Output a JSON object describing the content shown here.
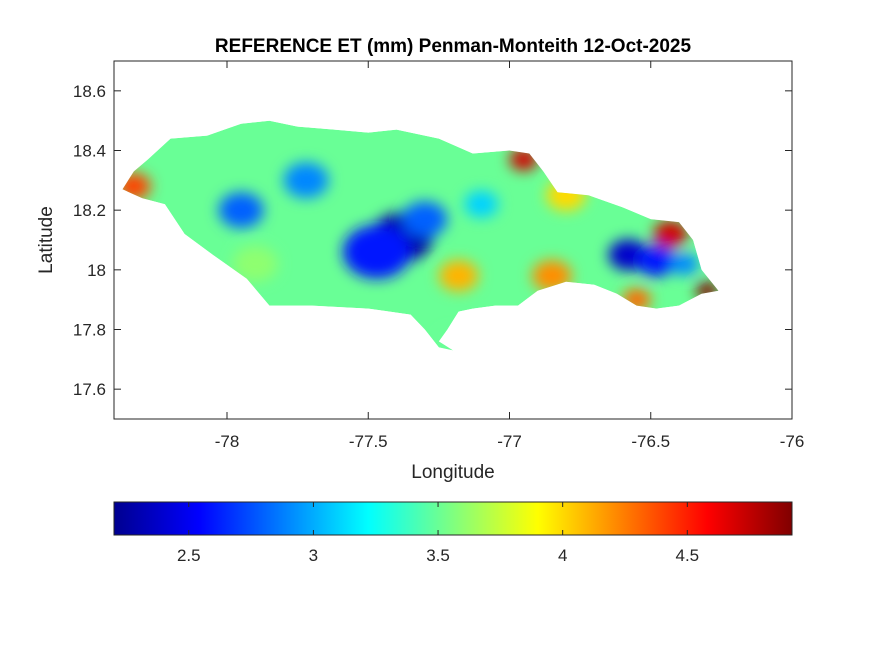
{
  "chart_data": {
    "type": "heatmap",
    "title": "REFERENCE ET (mm) Penman-Monteith 12-Oct-2025",
    "xlabel": "Longitude",
    "ylabel": "Latitude",
    "xlim": [
      -78.4,
      -76
    ],
    "ylim": [
      17.5,
      18.7
    ],
    "xticks": [
      -78,
      -77.5,
      -77,
      -76.5,
      -76
    ],
    "yticks": [
      17.6,
      17.8,
      18,
      18.2,
      18.4,
      18.6
    ],
    "grid": false,
    "colormap": "jet",
    "colorbar": {
      "position": "bottom",
      "range": [
        2.2,
        4.92
      ],
      "ticks": [
        2.5,
        3,
        3.5,
        4,
        4.5
      ]
    },
    "region_outline_lonlat": [
      [
        -78.37,
        18.27
      ],
      [
        -78.33,
        18.33
      ],
      [
        -78.28,
        18.37
      ],
      [
        -78.2,
        18.44
      ],
      [
        -78.07,
        18.45
      ],
      [
        -77.95,
        18.49
      ],
      [
        -77.85,
        18.5
      ],
      [
        -77.75,
        18.48
      ],
      [
        -77.62,
        18.47
      ],
      [
        -77.5,
        18.46
      ],
      [
        -77.4,
        18.47
      ],
      [
        -77.25,
        18.44
      ],
      [
        -77.13,
        18.39
      ],
      [
        -77.0,
        18.4
      ],
      [
        -76.93,
        18.39
      ],
      [
        -76.88,
        18.33
      ],
      [
        -76.83,
        18.26
      ],
      [
        -76.72,
        18.25
      ],
      [
        -76.6,
        18.21
      ],
      [
        -76.5,
        18.17
      ],
      [
        -76.4,
        18.16
      ],
      [
        -76.35,
        18.1
      ],
      [
        -76.32,
        18.0
      ],
      [
        -76.26,
        17.93
      ],
      [
        -76.32,
        17.92
      ],
      [
        -76.4,
        17.88
      ],
      [
        -76.48,
        17.87
      ],
      [
        -76.55,
        17.88
      ],
      [
        -76.62,
        17.92
      ],
      [
        -76.7,
        17.95
      ],
      [
        -76.8,
        17.96
      ],
      [
        -76.9,
        17.93
      ],
      [
        -76.97,
        17.88
      ],
      [
        -77.05,
        17.88
      ],
      [
        -77.13,
        17.87
      ],
      [
        -77.18,
        17.86
      ],
      [
        -77.22,
        17.8
      ],
      [
        -77.25,
        17.76
      ],
      [
        -77.2,
        17.73
      ],
      [
        -77.25,
        17.74
      ],
      [
        -77.3,
        17.8
      ],
      [
        -77.35,
        17.85
      ],
      [
        -77.5,
        17.87
      ],
      [
        -77.7,
        17.88
      ],
      [
        -77.85,
        17.88
      ],
      [
        -77.93,
        17.97
      ],
      [
        -78.05,
        18.05
      ],
      [
        -78.15,
        18.12
      ],
      [
        -78.22,
        18.22
      ],
      [
        -78.3,
        18.24
      ],
      [
        -78.37,
        18.27
      ]
    ],
    "field_centers": [
      {
        "lon": -77.38,
        "lat": 18.11,
        "value": 2.3,
        "r": 0.11
      },
      {
        "lon": -77.47,
        "lat": 18.06,
        "value": 2.6,
        "r": 0.12
      },
      {
        "lon": -77.3,
        "lat": 18.17,
        "value": 2.8,
        "r": 0.08
      },
      {
        "lon": -77.95,
        "lat": 18.2,
        "value": 2.8,
        "r": 0.08
      },
      {
        "lon": -77.72,
        "lat": 18.3,
        "value": 2.9,
        "r": 0.08
      },
      {
        "lon": -76.58,
        "lat": 18.05,
        "value": 2.4,
        "r": 0.07
      },
      {
        "lon": -76.48,
        "lat": 18.03,
        "value": 2.6,
        "r": 0.07
      },
      {
        "lon": -76.38,
        "lat": 18.02,
        "value": 2.9,
        "r": 0.05
      },
      {
        "lon": -77.1,
        "lat": 18.22,
        "value": 3.1,
        "r": 0.06
      },
      {
        "lon": -76.43,
        "lat": 18.12,
        "value": 4.7,
        "r": 0.06
      },
      {
        "lon": -76.3,
        "lat": 17.93,
        "value": 4.9,
        "r": 0.04
      },
      {
        "lon": -76.95,
        "lat": 18.37,
        "value": 4.7,
        "r": 0.05
      },
      {
        "lon": -78.33,
        "lat": 18.28,
        "value": 4.4,
        "r": 0.06
      },
      {
        "lon": -77.18,
        "lat": 17.98,
        "value": 4.1,
        "r": 0.07
      },
      {
        "lon": -76.85,
        "lat": 17.98,
        "value": 4.2,
        "r": 0.07
      },
      {
        "lon": -76.8,
        "lat": 18.25,
        "value": 4.0,
        "r": 0.07
      },
      {
        "lon": -76.55,
        "lat": 17.9,
        "value": 4.3,
        "r": 0.05
      },
      {
        "lon": -77.9,
        "lat": 18.02,
        "value": 3.6,
        "r": 0.08
      },
      {
        "lon": -77.2,
        "lat": 17.76,
        "value": 3.5,
        "r": 0.05
      }
    ],
    "field_background": 3.5
  }
}
